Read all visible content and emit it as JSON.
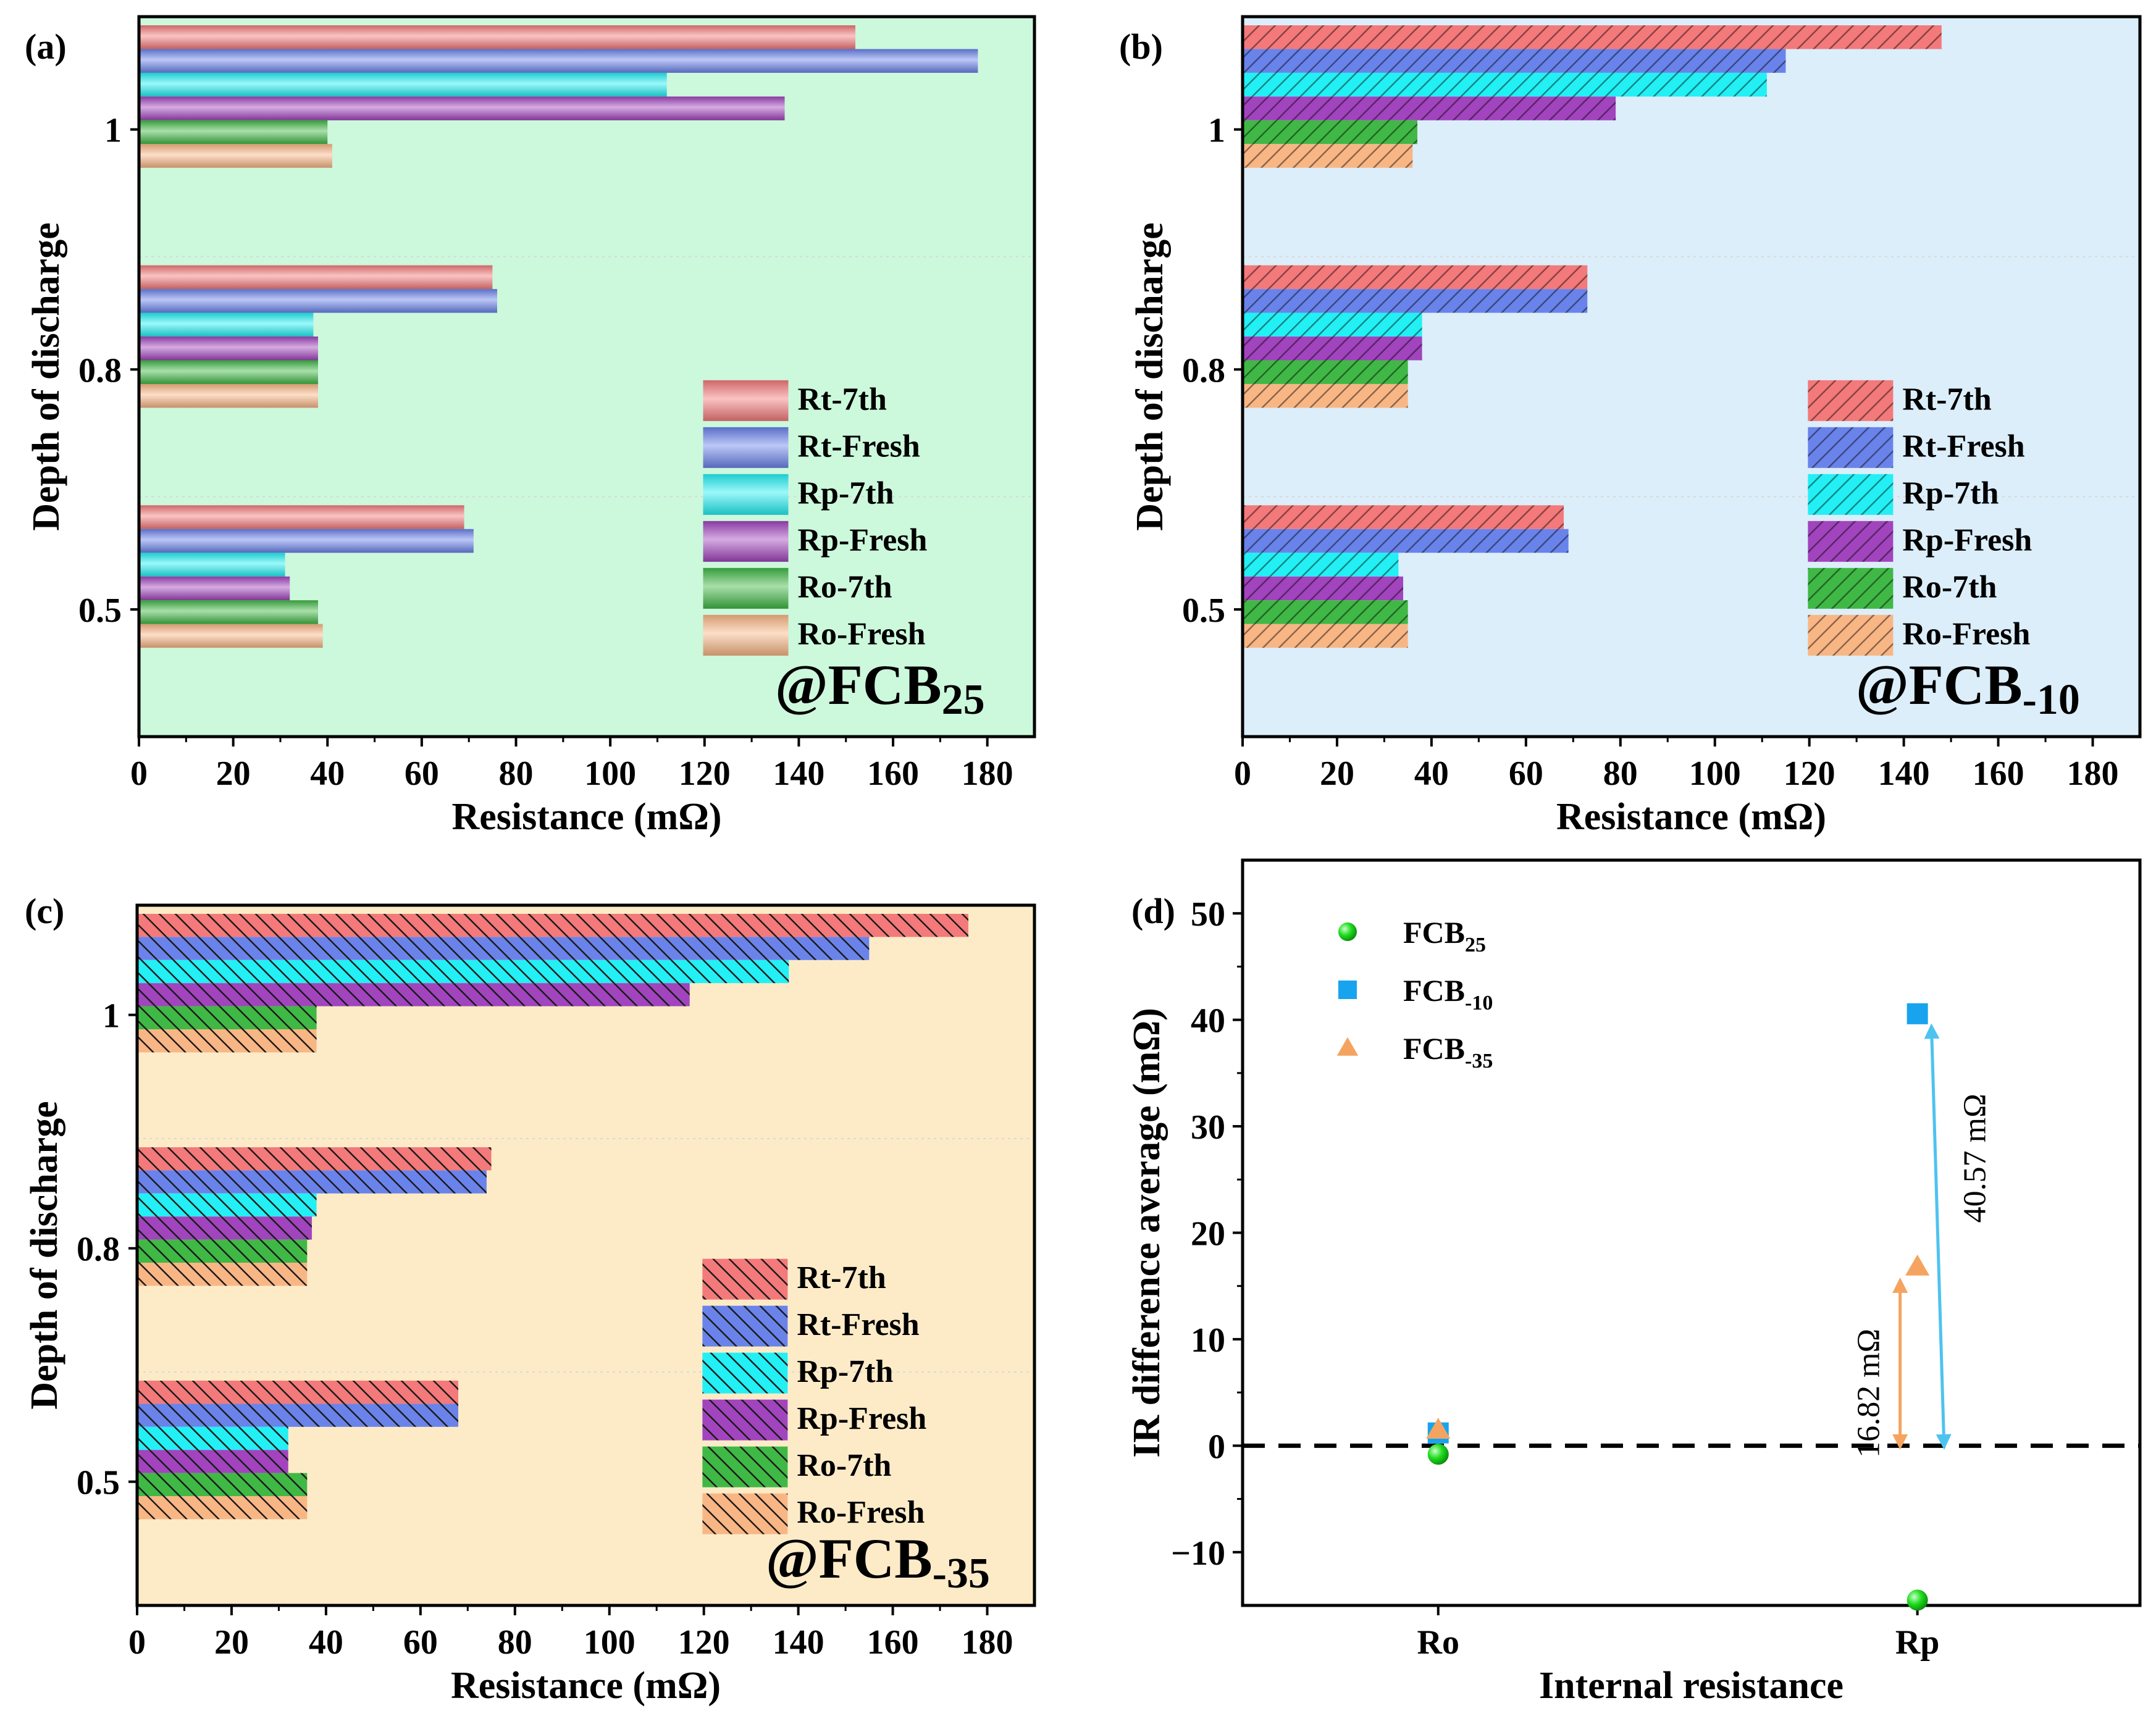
{
  "colors": {
    "Rt-7th": "#f4797a",
    "Rt-Fresh": "#6a83ea",
    "Rp-7th": "#22f0f4",
    "Rp-Fresh": "#a144bd",
    "Ro-7th": "#40b845",
    "Ro-Fresh": "#f9b685",
    "bg_a": "#ccf8dc",
    "bg_b": "#dbeefa",
    "bg_c": "#fdebc8",
    "FCB25": "#1fdc1f",
    "FCB-10": "#17a3ee",
    "FCB-35": "#f4a460"
  },
  "chart_data": [
    {
      "type": "bar",
      "orientation": "horizontal",
      "panel_label": "(a)",
      "annotation": {
        "main": "@FCB",
        "sub": "25"
      },
      "xlabel": "Resistance (mΩ)",
      "ylabel": "Depth of discharge",
      "xlim": [
        0,
        190
      ],
      "xticks": [
        0,
        20,
        40,
        60,
        80,
        100,
        120,
        140,
        160,
        180
      ],
      "categories": [
        "1",
        "0.8",
        "0.5"
      ],
      "legend_position": "right",
      "series": [
        {
          "name": "Rt-7th",
          "values": [
            152,
            75,
            69
          ]
        },
        {
          "name": "Rt-Fresh",
          "values": [
            178,
            76,
            71
          ]
        },
        {
          "name": "Rp-7th",
          "values": [
            112,
            37,
            31
          ]
        },
        {
          "name": "Rp-Fresh",
          "values": [
            137,
            38,
            32
          ]
        },
        {
          "name": "Ro-7th",
          "values": [
            40,
            38,
            38
          ]
        },
        {
          "name": "Ro-Fresh",
          "values": [
            41,
            38,
            39
          ]
        }
      ]
    },
    {
      "type": "bar",
      "orientation": "horizontal",
      "panel_label": "(b)",
      "annotation": {
        "main": "@FCB",
        "sub": "-10"
      },
      "xlabel": "Resistance (mΩ)",
      "ylabel": "Depth of discharge",
      "xlim": [
        0,
        190
      ],
      "xticks": [
        0,
        20,
        40,
        60,
        80,
        100,
        120,
        140,
        160,
        180
      ],
      "categories": [
        "1",
        "0.8",
        "0.5"
      ],
      "legend_position": "right",
      "series": [
        {
          "name": "Rt-7th",
          "values": [
            148,
            73,
            68
          ]
        },
        {
          "name": "Rt-Fresh",
          "values": [
            115,
            73,
            69
          ]
        },
        {
          "name": "Rp-7th",
          "values": [
            111,
            38,
            33
          ]
        },
        {
          "name": "Rp-Fresh",
          "values": [
            79,
            38,
            34
          ]
        },
        {
          "name": "Ro-7th",
          "values": [
            37,
            35,
            35
          ]
        },
        {
          "name": "Ro-Fresh",
          "values": [
            36,
            35,
            35
          ]
        }
      ]
    },
    {
      "type": "bar",
      "orientation": "horizontal",
      "panel_label": "(c)",
      "annotation": {
        "main": "@FCB",
        "sub": "-35"
      },
      "xlabel": "Resistance (mΩ)",
      "ylabel": "Depth of discharge",
      "xlim": [
        0,
        190
      ],
      "xticks": [
        0,
        20,
        40,
        60,
        80,
        100,
        120,
        140,
        160,
        180
      ],
      "categories": [
        "1",
        "0.8",
        "0.5"
      ],
      "legend_position": "right",
      "series": [
        {
          "name": "Rt-7th",
          "values": [
            176,
            75,
            68
          ]
        },
        {
          "name": "Rt-Fresh",
          "values": [
            155,
            74,
            68
          ]
        },
        {
          "name": "Rp-7th",
          "values": [
            138,
            38,
            32
          ]
        },
        {
          "name": "Rp-Fresh",
          "values": [
            117,
            37,
            32
          ]
        },
        {
          "name": "Ro-7th",
          "values": [
            38,
            36,
            36
          ]
        },
        {
          "name": "Ro-Fresh",
          "values": [
            38,
            36,
            36
          ]
        }
      ]
    },
    {
      "type": "scatter",
      "panel_label": "(d)",
      "xlabel": "Internal resistance",
      "ylabel": "IR difference average  (mΩ)",
      "categories": [
        "Ro",
        "Rp"
      ],
      "ylim": [
        -15,
        55
      ],
      "yticks": [
        -10,
        0,
        10,
        20,
        30,
        40,
        50
      ],
      "reference_line": 0,
      "legend_position": "top-left",
      "series": [
        {
          "name": "FCB25",
          "label_main": "FCB",
          "label_sub": "25",
          "marker": "circle",
          "values": [
            -0.8,
            -14.5
          ]
        },
        {
          "name": "FCB-10",
          "label_main": "FCB",
          "label_sub": "-10",
          "marker": "square",
          "values": [
            1.2,
            40.57
          ]
        },
        {
          "name": "FCB-35",
          "label_main": "FCB",
          "label_sub": "-35",
          "marker": "triangle",
          "values": [
            1.5,
            16.82
          ]
        }
      ],
      "annotations": [
        {
          "text": "16.82 mΩ",
          "category": "Rp",
          "from": 0,
          "to": 16.82
        },
        {
          "text": "40.57 mΩ",
          "category": "Rp",
          "from": 0,
          "to": 40.57
        }
      ]
    }
  ]
}
